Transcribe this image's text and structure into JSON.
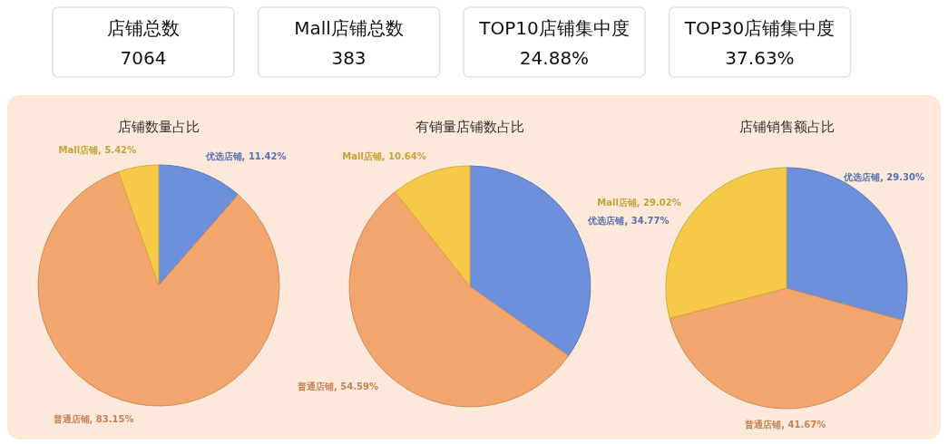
{
  "chart_data": [
    {
      "type": "other",
      "annotations": [
        "店铺总数",
        "7064",
        "Mall店铺总数",
        "383",
        "TOP10店铺集中度",
        "24.88%",
        "TOP30店铺集中度",
        "37.63%"
      ]
    },
    {
      "type": "pie",
      "title": "店铺数量占比",
      "categories": [
        "优选店铺",
        "普通店铺",
        "Mall店铺"
      ],
      "values": [
        11.42,
        83.15,
        5.42
      ],
      "value_labels": [
        "11.42%",
        "83.15%",
        "5.42%"
      ],
      "colors": [
        "#6d8fdc",
        "#f2a56c",
        "#f7c948"
      ]
    },
    {
      "type": "pie",
      "title": "有销量店铺数占比",
      "categories": [
        "优选店铺",
        "普通店铺",
        "Mall店铺"
      ],
      "values": [
        34.77,
        54.59,
        10.64
      ],
      "value_labels": [
        "34.77%",
        "54.59%",
        "10.64%"
      ],
      "colors": [
        "#6d8fdc",
        "#f2a56c",
        "#f7c948"
      ]
    },
    {
      "type": "pie",
      "title": "店铺销售额占比",
      "categories": [
        "优选店铺",
        "普通店铺",
        "Mall店铺"
      ],
      "values": [
        29.3,
        41.67,
        29.02
      ],
      "value_labels": [
        "29.30%",
        "41.67%",
        "29.02%"
      ],
      "colors": [
        "#6d8fdc",
        "#f2a56c",
        "#f7c948"
      ]
    }
  ]
}
